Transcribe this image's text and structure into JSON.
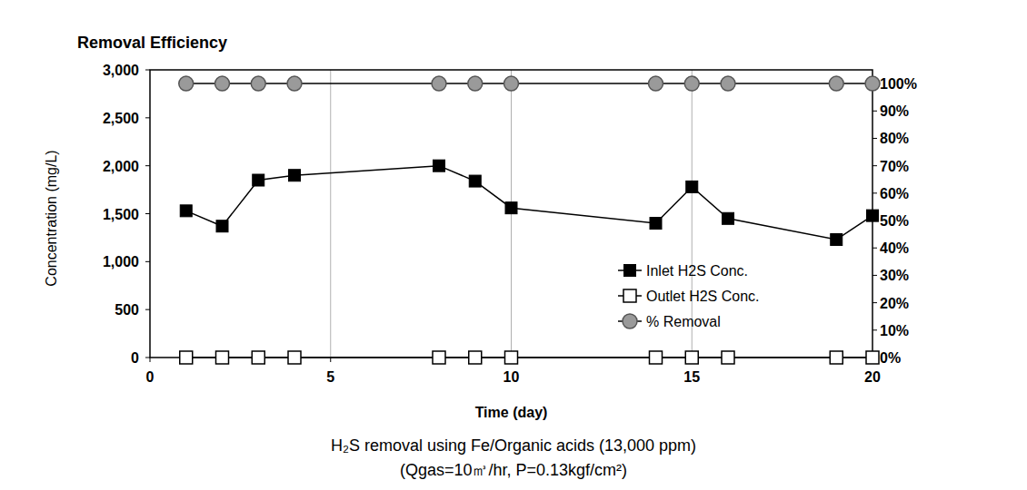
{
  "chart_data": {
    "type": "line",
    "title": "Removal Efficiency",
    "x_label": "Time (day)",
    "y_label": "Concentration (mg/L)",
    "annotations": [
      "H₂S removal using Fe/Organic acids (13,000 ppm)",
      "(Qgas=10㎥/hr, P=0.13kgf/cm²)"
    ],
    "x": [
      1,
      2,
      3,
      4,
      8,
      9,
      10,
      14,
      15,
      16,
      19,
      20
    ],
    "xlim": [
      0,
      20
    ],
    "xticks": [
      0,
      5,
      10,
      15,
      20
    ],
    "ylim": [
      0,
      3000
    ],
    "yticks": [
      0,
      500,
      {
        "value": 1000,
        "label": "1,000"
      },
      {
        "value": 1500,
        "label": "1,500"
      },
      {
        "value": 2000,
        "label": "2,000"
      },
      {
        "value": 2500,
        "label": "2,500"
      },
      {
        "value": 3000,
        "label": "3,000"
      }
    ],
    "y2lim": [
      0,
      105
    ],
    "y2ticks": [
      {
        "value": 0,
        "label": "0%"
      },
      {
        "value": 10,
        "label": "10%"
      },
      {
        "value": 20,
        "label": "20%"
      },
      {
        "value": 30,
        "label": "30%"
      },
      {
        "value": 40,
        "label": "40%"
      },
      {
        "value": 50,
        "label": "50%"
      },
      {
        "value": 60,
        "label": "60%"
      },
      {
        "value": 70,
        "label": "70%"
      },
      {
        "value": 80,
        "label": "80%"
      },
      {
        "value": 90,
        "label": "90%"
      },
      {
        "value": 100,
        "label": "100%"
      }
    ],
    "grid": "x",
    "legend": "lower right",
    "series": [
      {
        "name": "Inlet H2S Conc.",
        "color": "#000000",
        "marker": "square-filled",
        "values": [
          1530,
          1370,
          1850,
          1900,
          2000,
          1840,
          1560,
          1400,
          1780,
          1450,
          1230,
          1480
        ]
      },
      {
        "name": "Outlet H2S Conc.",
        "color": "#000000",
        "marker": "square-open",
        "values": [
          0,
          0,
          0,
          0,
          0,
          0,
          0,
          0,
          0,
          0,
          0,
          0
        ]
      },
      {
        "name": "% Removal",
        "color": "#9a9a9a",
        "marker": "circle",
        "axis": "y2",
        "values": [
          100,
          100,
          100,
          100,
          100,
          100,
          100,
          100,
          100,
          100,
          100,
          100
        ]
      }
    ]
  }
}
